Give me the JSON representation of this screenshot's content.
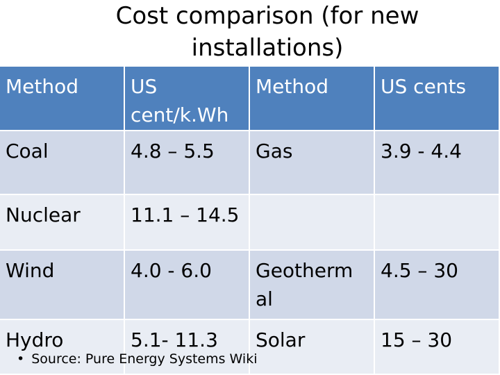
{
  "title": "Cost comparison (for new installations)",
  "table": {
    "headers": [
      "Method",
      "US cent/k.Wh",
      "Method",
      "US cents"
    ],
    "rows": [
      [
        "Coal",
        "4.8 – 5.5",
        "Gas",
        "3.9 - 4.4"
      ],
      [
        "Nuclear",
        "11.1 – 14.5",
        "",
        ""
      ],
      [
        "Wind",
        "4.0 - 6.0",
        "Geotherm al",
        "4.5 – 30"
      ],
      [
        "Hydro",
        "5.1- 11.3",
        "Solar",
        "15 – 30"
      ]
    ]
  },
  "source": {
    "bullet": "•",
    "text": "Source: Pure Energy Systems Wiki"
  },
  "colors": {
    "header_bg": "#4f81bd",
    "row_odd_bg": "#d0d8e8",
    "row_even_bg": "#e9edf4"
  }
}
